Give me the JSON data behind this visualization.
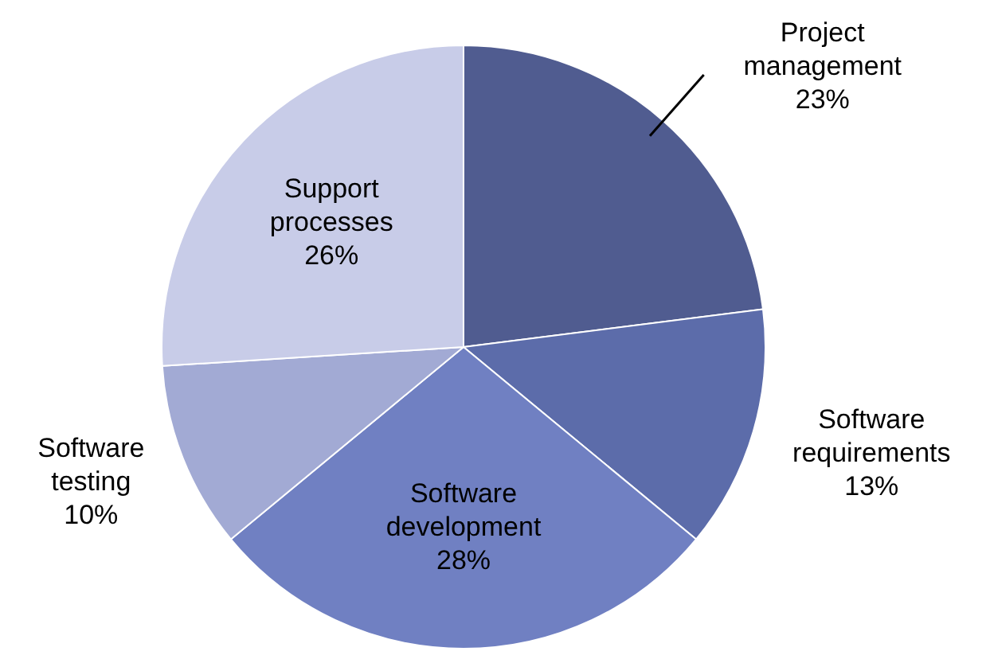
{
  "chart_data": {
    "type": "pie",
    "categories": [
      "Project management",
      "Software requirements",
      "Software development",
      "Software testing",
      "Support processes"
    ],
    "values": [
      23,
      13,
      28,
      10,
      26
    ],
    "value_labels": [
      "23%",
      "13%",
      "28%",
      "10%",
      "26%"
    ],
    "colors": [
      "#505c90",
      "#5c6caa",
      "#7080c2",
      "#a2aad4",
      "#c8cce8"
    ],
    "legend": false
  }
}
